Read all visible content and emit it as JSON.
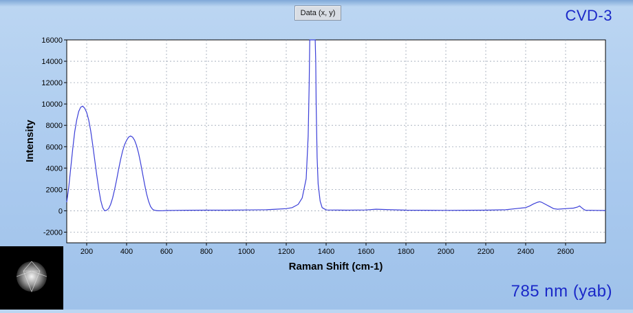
{
  "legend": {
    "label": "Data (x, y)"
  },
  "titles": {
    "top_right": "CVD-3",
    "bottom_right": "785 nm (yab)"
  },
  "colors": {
    "series": "#3a3ed8",
    "grid": "#9aa4b4",
    "accent": "#1a28c8"
  },
  "chart_data": {
    "type": "line",
    "title": "CVD-3",
    "xlabel": "Raman Shift (cm-1)",
    "ylabel": "Intensity",
    "xlim": [
      100,
      2800
    ],
    "ylim": [
      -3000,
      16000
    ],
    "xticks": [
      200,
      400,
      600,
      800,
      1000,
      1200,
      1400,
      1600,
      1800,
      2000,
      2200,
      2400,
      2600
    ],
    "yticks": [
      -2000,
      0,
      2000,
      4000,
      6000,
      8000,
      10000,
      12000,
      14000,
      16000
    ],
    "grid": true,
    "series": [
      {
        "name": "Data (x, y)",
        "x": [
          100,
          110,
          120,
          130,
          140,
          150,
          160,
          170,
          180,
          190,
          200,
          210,
          220,
          230,
          240,
          250,
          260,
          270,
          280,
          290,
          300,
          310,
          320,
          330,
          340,
          350,
          360,
          370,
          380,
          390,
          400,
          410,
          420,
          430,
          440,
          450,
          460,
          470,
          480,
          490,
          500,
          510,
          520,
          530,
          540,
          550,
          560,
          580,
          600,
          700,
          800,
          900,
          1000,
          1100,
          1150,
          1200,
          1230,
          1260,
          1280,
          1300,
          1310,
          1315,
          1318,
          1320,
          1322,
          1325,
          1328,
          1330,
          1332,
          1335,
          1338,
          1340,
          1342,
          1345,
          1348,
          1350,
          1355,
          1360,
          1370,
          1380,
          1400,
          1500,
          1600,
          1650,
          1700,
          1800,
          1900,
          2000,
          2100,
          2200,
          2300,
          2350,
          2400,
          2420,
          2440,
          2460,
          2470,
          2480,
          2500,
          2520,
          2540,
          2560,
          2600,
          2640,
          2660,
          2670,
          2680,
          2690,
          2700,
          2750,
          2800
        ],
        "y": [
          800,
          2200,
          4000,
          5800,
          7400,
          8500,
          9300,
          9700,
          9800,
          9600,
          9200,
          8500,
          7500,
          6200,
          4800,
          3400,
          2100,
          1000,
          300,
          0,
          50,
          200,
          600,
          1200,
          2000,
          2900,
          3900,
          4800,
          5600,
          6200,
          6600,
          6900,
          7000,
          6900,
          6600,
          6100,
          5400,
          4500,
          3500,
          2500,
          1600,
          900,
          400,
          150,
          50,
          20,
          0,
          10,
          30,
          50,
          60,
          60,
          80,
          100,
          150,
          200,
          300,
          600,
          1200,
          3000,
          7000,
          12000,
          16000,
          16000,
          16000,
          16000,
          16000,
          16000,
          16000,
          16000,
          16000,
          16000,
          16000,
          16000,
          14000,
          10000,
          5000,
          2500,
          900,
          300,
          80,
          60,
          80,
          150,
          120,
          60,
          50,
          40,
          50,
          60,
          100,
          200,
          300,
          450,
          650,
          800,
          850,
          800,
          600,
          400,
          200,
          150,
          200,
          250,
          350,
          450,
          300,
          150,
          50,
          40,
          30
        ]
      }
    ]
  }
}
